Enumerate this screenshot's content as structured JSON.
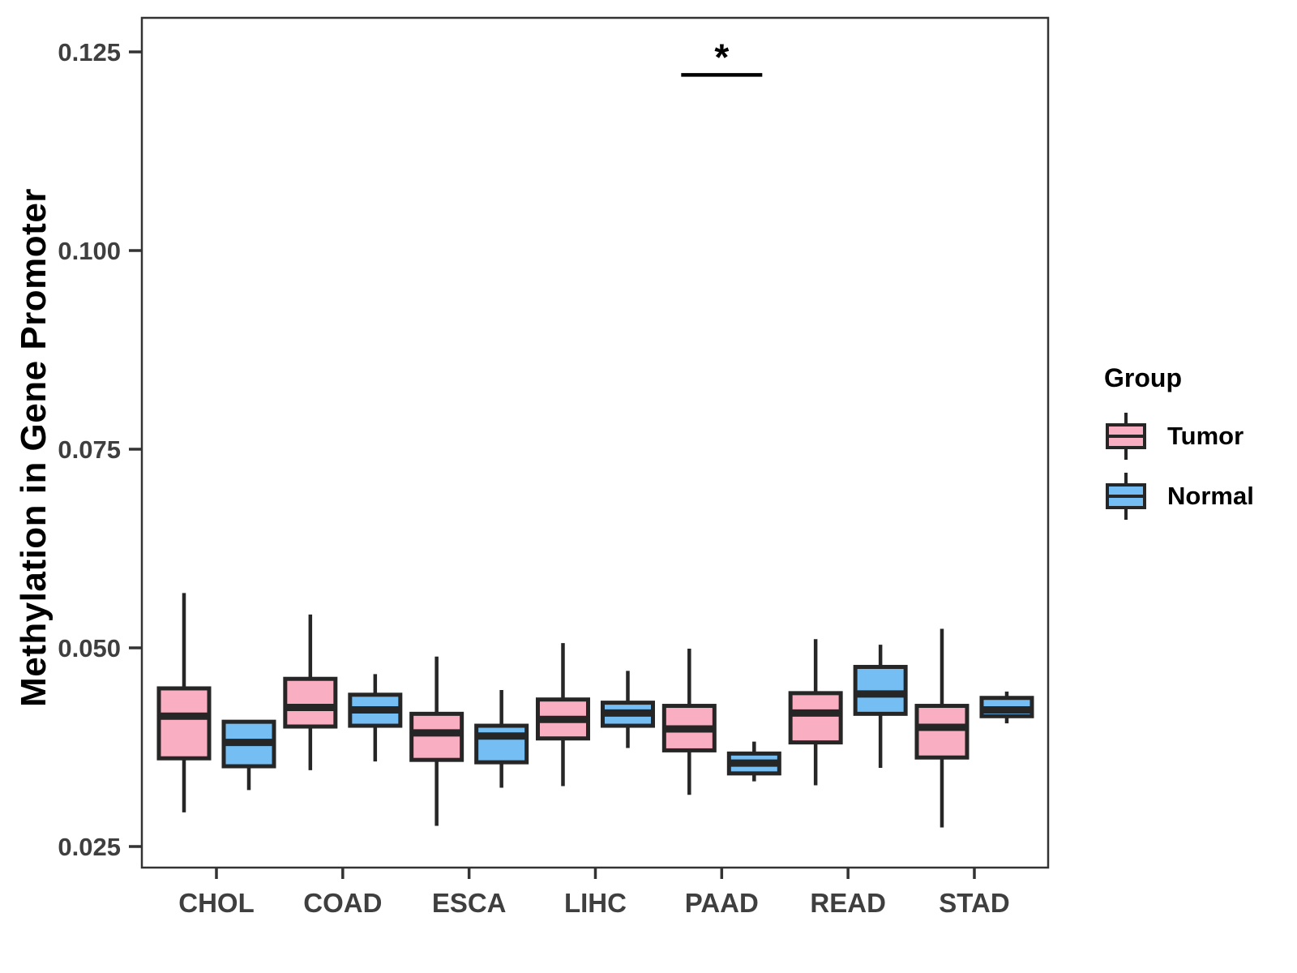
{
  "chart_data": {
    "type": "boxplot",
    "title": "",
    "xlabel": "",
    "ylabel": "Methylation in Gene Promoter",
    "categories": [
      "CHOL",
      "COAD",
      "ESCA",
      "LIHC",
      "PAAD",
      "READ",
      "STAD"
    ],
    "y_ticks": [
      {
        "value": 0.025,
        "label": "0.025"
      },
      {
        "value": 0.05,
        "label": "0.050"
      },
      {
        "value": 0.075,
        "label": "0.075"
      },
      {
        "value": 0.1,
        "label": "0.100"
      },
      {
        "value": 0.125,
        "label": "0.125"
      }
    ],
    "ylim": [
      0.0205,
      0.1295
    ],
    "grid": "off",
    "legend_position": "right",
    "series": [
      {
        "name": "Tumor",
        "color": "#FAAEC1",
        "boxes": [
          {
            "category": "CHOL",
            "low": 0.0293,
            "q1": 0.0361,
            "median": 0.0414,
            "q3": 0.0449,
            "high": 0.0569
          },
          {
            "category": "COAD",
            "low": 0.0346,
            "q1": 0.0401,
            "median": 0.0425,
            "q3": 0.0461,
            "high": 0.0542
          },
          {
            "category": "ESCA",
            "low": 0.0276,
            "q1": 0.0359,
            "median": 0.0393,
            "q3": 0.0417,
            "high": 0.0489
          },
          {
            "category": "LIHC",
            "low": 0.0326,
            "q1": 0.0386,
            "median": 0.041,
            "q3": 0.0435,
            "high": 0.0506
          },
          {
            "category": "PAAD",
            "low": 0.0315,
            "q1": 0.0371,
            "median": 0.0398,
            "q3": 0.0427,
            "high": 0.0499
          },
          {
            "category": "READ",
            "low": 0.0327,
            "q1": 0.0381,
            "median": 0.0418,
            "q3": 0.0443,
            "high": 0.0511
          },
          {
            "category": "STAD",
            "low": 0.0274,
            "q1": 0.0362,
            "median": 0.04,
            "q3": 0.0427,
            "high": 0.0524
          }
        ]
      },
      {
        "name": "Normal",
        "color": "#74BEF4",
        "boxes": [
          {
            "category": "CHOL",
            "low": 0.0321,
            "q1": 0.0351,
            "median": 0.0381,
            "q3": 0.0407,
            "high": 0.0407
          },
          {
            "category": "COAD",
            "low": 0.0357,
            "q1": 0.0402,
            "median": 0.0422,
            "q3": 0.0441,
            "high": 0.0467
          },
          {
            "category": "ESCA",
            "low": 0.0324,
            "q1": 0.0356,
            "median": 0.0389,
            "q3": 0.0402,
            "high": 0.0447
          },
          {
            "category": "LIHC",
            "low": 0.0374,
            "q1": 0.0402,
            "median": 0.0418,
            "q3": 0.0431,
            "high": 0.0471
          },
          {
            "category": "PAAD",
            "low": 0.0332,
            "q1": 0.0342,
            "median": 0.0355,
            "q3": 0.0367,
            "high": 0.0382
          },
          {
            "category": "READ",
            "low": 0.0349,
            "q1": 0.0417,
            "median": 0.0442,
            "q3": 0.0476,
            "high": 0.0504
          },
          {
            "category": "STAD",
            "low": 0.0405,
            "q1": 0.0414,
            "median": 0.0422,
            "q3": 0.0437,
            "high": 0.0445
          }
        ]
      }
    ],
    "annotations": [
      {
        "type": "significance-bracket",
        "label": "*",
        "category": "PAAD",
        "y": 0.1221
      }
    ]
  },
  "legend": {
    "title": "Group",
    "items": [
      {
        "label": "Tumor",
        "color": "#FAAEC1"
      },
      {
        "label": "Normal",
        "color": "#74BEF4"
      }
    ]
  },
  "colors": {
    "box_outline": "#262626",
    "axis_text": "#3F3F3F",
    "panel_border": "#333333",
    "annotation": "#000000",
    "background": "#FFFFFF"
  }
}
